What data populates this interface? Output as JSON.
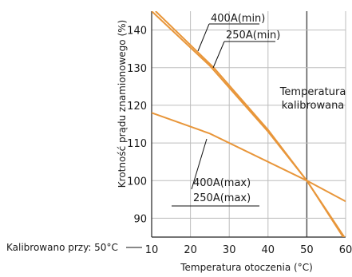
{
  "chart_data": {
    "type": "line",
    "xlabel": "Temperatura otoczenia (°C)",
    "ylabel": "Krotność prądu znamionowego (%)",
    "xlim": [
      10,
      60
    ],
    "ylim": [
      85,
      145
    ],
    "x_ticks": [
      "10",
      "20",
      "30",
      "40",
      "50",
      "60"
    ],
    "y_ticks": [
      "90",
      "100",
      "110",
      "120",
      "130",
      "140"
    ],
    "grid": true,
    "series": [
      {
        "name": "400A(min)",
        "color": "#e8963a",
        "points": [
          [
            10,
            145
          ],
          [
            25,
            130.5
          ],
          [
            40,
            113
          ],
          [
            50,
            100
          ],
          [
            60,
            84.5
          ]
        ]
      },
      {
        "name": "250A(min)",
        "color": "#e8963a",
        "points": [
          [
            11,
            145
          ],
          [
            26,
            130
          ],
          [
            40,
            113.5
          ],
          [
            50,
            100
          ],
          [
            60,
            84
          ]
        ]
      },
      {
        "name": "400A(max)",
        "color": "#e8963a",
        "points": [
          [
            10,
            118
          ],
          [
            25,
            112.5
          ],
          [
            50,
            100
          ],
          [
            60,
            94.5
          ]
        ]
      }
    ],
    "annotations": {
      "max_label_top": "400A(min)",
      "max_label_bottom": "250A(min)",
      "min_label_top": "400A(max)",
      "min_label_bottom": "250A(max)",
      "ref_line_top": "Temperatura",
      "ref_line_bottom": "kalibrowana",
      "calibration_note": "Kalibrowano przy: 50°C"
    },
    "reference_x": 50
  }
}
